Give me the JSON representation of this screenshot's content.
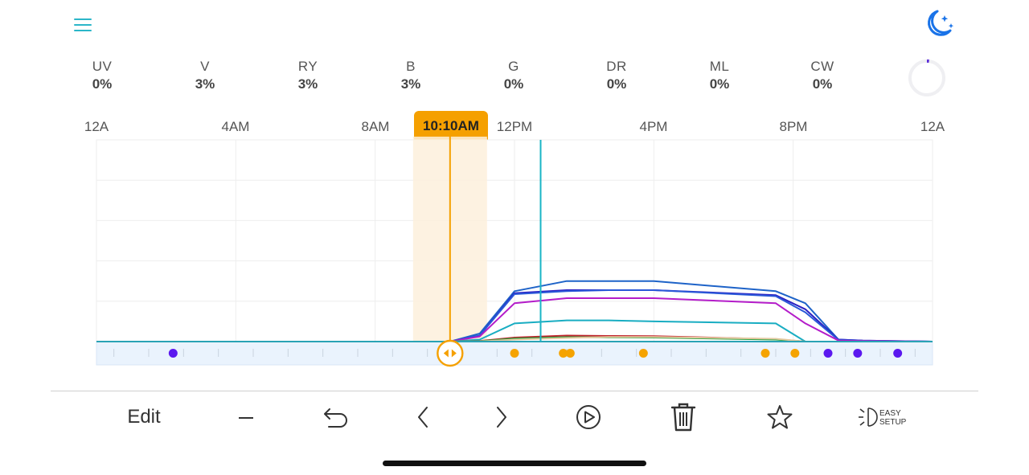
{
  "header": {
    "menu_icon": "hamburger-menu-icon",
    "night_mode_icon": "moon-stars-icon",
    "accent_color": "#2bb6c9",
    "moon_color": "#1a73e8"
  },
  "channels": [
    {
      "label": "UV",
      "value": "0%"
    },
    {
      "label": "V",
      "value": "3%"
    },
    {
      "label": "RY",
      "value": "3%"
    },
    {
      "label": "B",
      "value": "3%"
    },
    {
      "label": "G",
      "value": "0%"
    },
    {
      "label": "DR",
      "value": "0%"
    },
    {
      "label": "ML",
      "value": "0%"
    },
    {
      "label": "CW",
      "value": "0%"
    }
  ],
  "progress_ring": {
    "icon": "progress-ring-icon",
    "fraction": 0.02,
    "color": "#5b2dd8"
  },
  "time_axis": {
    "labels": [
      "12A",
      "4AM",
      "8AM",
      "12PM",
      "4PM",
      "8PM",
      "12A"
    ]
  },
  "current_time": {
    "label": "10:10AM",
    "color": "#f5a000"
  },
  "now_marker_time": "12:45PM",
  "chart_data": {
    "type": "line",
    "x_unit": "hour of day",
    "xlim": [
      0,
      24
    ],
    "ylim": [
      0,
      100
    ],
    "x": [
      0,
      10.15,
      11,
      12,
      13.5,
      14.7,
      16,
      19.5,
      20.35,
      21.3,
      22,
      24
    ],
    "series": [
      {
        "color": "#1e63c8",
        "values": [
          0,
          0,
          4,
          25,
          30,
          30,
          30,
          25,
          19,
          1,
          0.5,
          0
        ]
      },
      {
        "color": "#2a1fc2",
        "values": [
          0,
          0,
          3,
          24,
          25.5,
          25.5,
          25.5,
          23,
          16,
          1,
          0.5,
          0
        ]
      },
      {
        "color": "#2a58d8",
        "values": [
          0,
          0,
          3,
          23.5,
          25,
          25.5,
          25.5,
          22.5,
          14.5,
          0.8,
          0.4,
          0
        ]
      },
      {
        "color": "#b41cc9",
        "values": [
          0,
          0,
          2.5,
          19,
          21.5,
          21.5,
          21.5,
          19,
          9,
          0.5,
          0.3,
          0
        ]
      },
      {
        "color": "#19adc2",
        "values": [
          0,
          0,
          1,
          9,
          10.5,
          10.5,
          10,
          9,
          0,
          0,
          0,
          0
        ]
      },
      {
        "color": "#c0232c",
        "values": [
          0,
          0,
          0.3,
          2,
          3,
          2.8,
          2.7,
          1.2,
          0,
          0,
          0,
          0
        ]
      },
      {
        "color": "#23a03c",
        "values": [
          0,
          0,
          0.2,
          1.5,
          2.2,
          2.1,
          2,
          1,
          0,
          0,
          0,
          0
        ]
      },
      {
        "color": "#e2c9a0",
        "values": [
          0,
          0,
          0.1,
          1,
          1.8,
          2.3,
          2.3,
          1.4,
          0,
          0,
          0,
          0
        ]
      }
    ],
    "cursor_time": 10.15,
    "now_time": 12.75,
    "keyframes": [
      {
        "hour": 2.2,
        "color": "#5b18ef"
      },
      {
        "hour": 12.0,
        "color": "#f5a300"
      },
      {
        "hour": 13.4,
        "color": "#f5a300"
      },
      {
        "hour": 13.6,
        "color": "#f5a300"
      },
      {
        "hour": 15.7,
        "color": "#f5a300"
      },
      {
        "hour": 19.2,
        "color": "#f5a300"
      },
      {
        "hour": 20.05,
        "color": "#f5a300"
      },
      {
        "hour": 21.0,
        "color": "#5b18ef"
      },
      {
        "hour": 21.85,
        "color": "#5b18ef"
      },
      {
        "hour": 23.0,
        "color": "#5b18ef"
      }
    ],
    "grid": true
  },
  "toolbar": {
    "edit_label": "Edit",
    "minus_icon": "minus-icon",
    "undo_icon": "undo-icon",
    "prev_icon": "chevron-left-icon",
    "next_icon": "chevron-right-icon",
    "play_icon": "play-circle-icon",
    "delete_icon": "trash-icon",
    "favorite_icon": "star-icon",
    "easy_setup_icon": "easy-setup-icon",
    "easy_setup_line1": "EASY",
    "easy_setup_line2": "SETUP"
  }
}
